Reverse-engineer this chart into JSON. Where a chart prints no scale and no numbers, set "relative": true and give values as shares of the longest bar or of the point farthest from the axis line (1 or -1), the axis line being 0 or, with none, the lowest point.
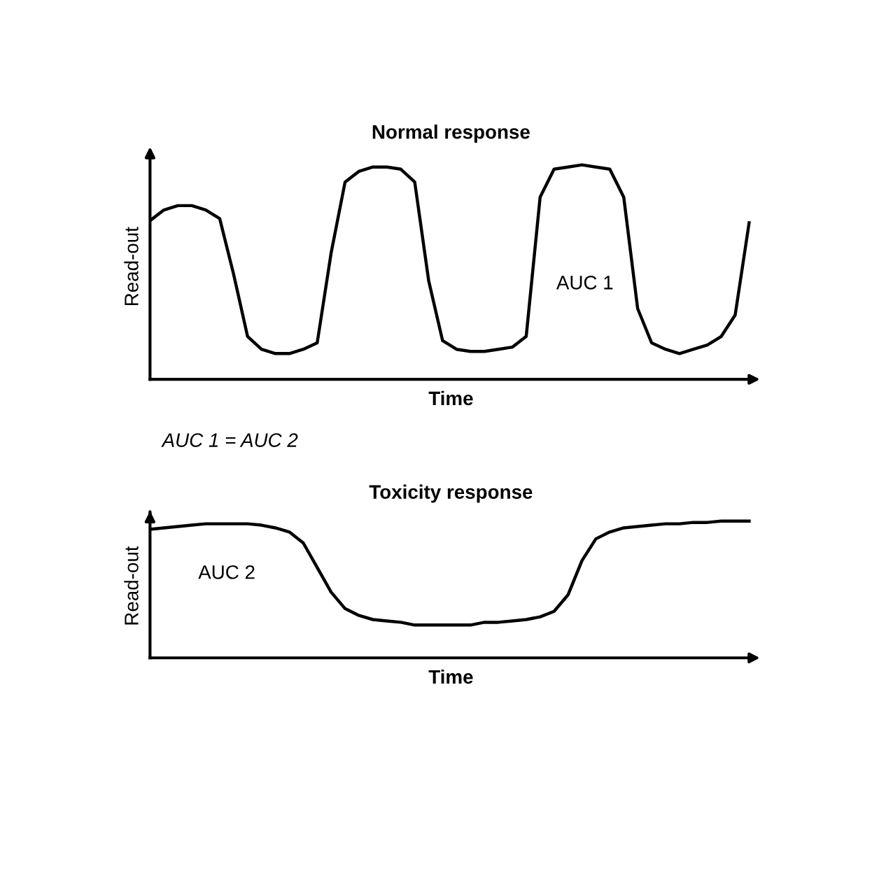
{
  "chart_data": [
    {
      "type": "line",
      "title": "Normal response",
      "xlabel": "Time",
      "ylabel": "Read-out",
      "relative": true,
      "annotations": [
        "AUC 1",
        "AUC 1 = AUC 2"
      ],
      "categories": [
        null,
        null,
        null,
        null,
        null,
        null,
        null,
        null,
        null,
        null,
        null,
        null,
        null,
        null,
        null,
        null,
        null,
        null,
        null,
        null,
        null,
        null,
        null,
        null,
        null,
        null,
        null,
        null,
        null,
        null,
        null,
        null,
        null,
        null,
        null,
        null,
        null,
        null,
        null,
        null,
        null,
        null,
        null,
        null
      ],
      "series": [
        {
          "color": "#000000",
          "values": [
            0.74,
            0.79,
            0.81,
            0.81,
            0.79,
            0.75,
            0.49,
            0.2,
            0.14,
            0.12,
            0.12,
            0.14,
            0.17,
            0.59,
            0.92,
            0.97,
            0.99,
            0.99,
            0.98,
            0.92,
            0.46,
            0.18,
            0.14,
            0.13,
            0.13,
            0.14,
            0.15,
            0.2,
            0.85,
            0.98,
            0.99,
            1.0,
            0.99,
            0.98,
            0.85,
            0.33,
            0.17,
            0.14,
            0.12,
            0.14,
            0.16,
            0.2,
            0.3,
            0.73
          ]
        }
      ],
      "marker": "none",
      "line_style": "solid",
      "tick_labels": false
    },
    {
      "type": "line",
      "title": "Toxicity response",
      "xlabel": "Time",
      "ylabel": "Read-out",
      "relative": true,
      "annotations": [
        "AUC 2"
      ],
      "categories": [
        null,
        null,
        null,
        null,
        null,
        null,
        null,
        null,
        null,
        null,
        null,
        null,
        null,
        null,
        null,
        null,
        null,
        null,
        null,
        null,
        null,
        null,
        null,
        null,
        null,
        null,
        null,
        null,
        null,
        null,
        null,
        null,
        null,
        null,
        null,
        null,
        null,
        null,
        null,
        null,
        null,
        null,
        null,
        null
      ],
      "series": [
        {
          "color": "#000000",
          "values": [
            0.94,
            0.95,
            0.96,
            0.97,
            0.98,
            0.98,
            0.98,
            0.98,
            0.97,
            0.95,
            0.92,
            0.84,
            0.66,
            0.48,
            0.36,
            0.31,
            0.28,
            0.27,
            0.26,
            0.24,
            0.24,
            0.24,
            0.24,
            0.24,
            0.26,
            0.26,
            0.27,
            0.28,
            0.3,
            0.34,
            0.46,
            0.71,
            0.87,
            0.92,
            0.95,
            0.96,
            0.97,
            0.98,
            0.98,
            0.99,
            0.99,
            1.0,
            1.0,
            1.0
          ]
        }
      ],
      "marker": "none",
      "line_style": "solid",
      "tick_labels": false
    }
  ]
}
